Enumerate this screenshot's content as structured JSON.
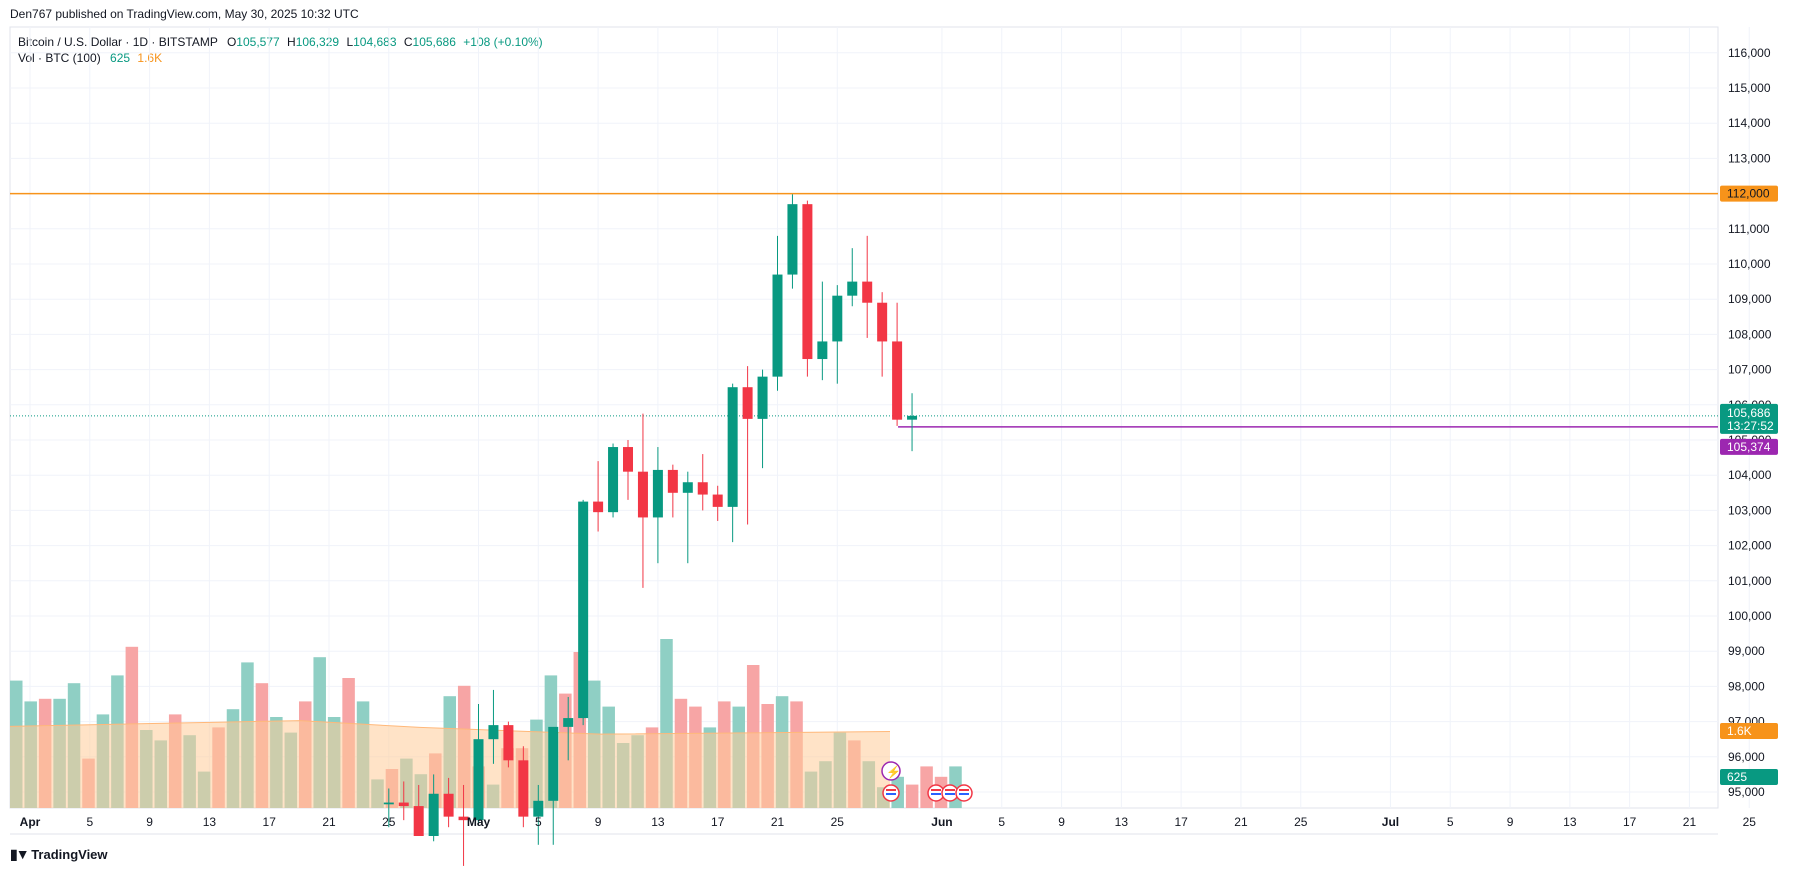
{
  "header": {
    "published": "Den767 published on TradingView.com, May 30, 2025 10:32 UTC"
  },
  "legend": {
    "symbol": "Bitcoin / U.S. Dollar · 1D · BITSTAMP",
    "o_label": "O",
    "o_value": "105,577",
    "h_label": "H",
    "h_value": "106,329",
    "l_label": "L",
    "l_value": "104,683",
    "c_label": "C",
    "c_value": "105,686",
    "change": "+108 (+0.10%)",
    "vol_label": "Vol · BTC (100)",
    "vol_value": "625",
    "vol_ma": "1.6K"
  },
  "footer": {
    "logo_text": "TradingView"
  },
  "colors": {
    "up": "#089981",
    "down": "#f23645",
    "vol_up": "#8fcfc4",
    "vol_down": "#f7a5a5",
    "vol_ma_fill": "#ffcc99",
    "resistance": "#f7931a",
    "support": "#9c27b0"
  },
  "chart_data": {
    "type": "candlestick",
    "symbol": "BTCUSD",
    "timeframe": "1D",
    "ylim": [
      94700,
      116500
    ],
    "y_ticks": [
      95000,
      96000,
      97000,
      98000,
      99000,
      100000,
      101000,
      102000,
      103000,
      104000,
      105000,
      106000,
      107000,
      108000,
      109000,
      110000,
      111000,
      112000,
      113000,
      114000,
      115000,
      116000
    ],
    "y_tick_labels": [
      "95,000",
      "96,000",
      "97,000",
      "98,000",
      "99,000",
      "100,000",
      "101,000",
      "102,000",
      "103,000",
      "104,000",
      "105,000",
      "106,000",
      "107,000",
      "108,000",
      "109,000",
      "110,000",
      "111,000",
      "112,000",
      "113,000",
      "114,000",
      "115,000",
      "116,000"
    ],
    "x_tick_labels": [
      "Apr",
      "5",
      "9",
      "13",
      "17",
      "21",
      "25",
      "May",
      "5",
      "9",
      "13",
      "17",
      "21",
      "25",
      "Jun",
      "5",
      "9",
      "13",
      "17",
      "21",
      "25",
      "Jul",
      "5",
      "9",
      "13",
      "17",
      "21",
      "25"
    ],
    "x_tick_days": [
      0,
      4,
      8,
      12,
      16,
      20,
      24,
      30,
      34,
      38,
      42,
      46,
      50,
      54,
      61,
      65,
      69,
      73,
      77,
      81,
      85,
      91,
      95,
      99,
      103,
      107,
      111,
      115
    ],
    "bold_ticks": [
      "Apr",
      "May",
      "Jun",
      "Jul"
    ],
    "candles": [
      {
        "date": "2025-04-25",
        "o": 94650,
        "h": 95100,
        "l": 94000,
        "c": 94700
      },
      {
        "date": "2025-04-26",
        "o": 94700,
        "h": 95300,
        "l": 94200,
        "c": 94600
      },
      {
        "date": "2025-04-27",
        "o": 94600,
        "h": 95200,
        "l": 93800,
        "c": 93750
      },
      {
        "date": "2025-04-28",
        "o": 93750,
        "h": 95500,
        "l": 93600,
        "c": 94950
      },
      {
        "date": "2025-04-29",
        "o": 94950,
        "h": 95400,
        "l": 94000,
        "c": 94300
      },
      {
        "date": "2025-04-30",
        "o": 94300,
        "h": 95200,
        "l": 92900,
        "c": 94200
      },
      {
        "date": "2025-05-01",
        "o": 94200,
        "h": 97500,
        "l": 94100,
        "c": 96500
      },
      {
        "date": "2025-05-02",
        "o": 96500,
        "h": 97900,
        "l": 95800,
        "c": 96900
      },
      {
        "date": "2025-05-03",
        "o": 96900,
        "h": 97000,
        "l": 95700,
        "c": 95900
      },
      {
        "date": "2025-05-04",
        "o": 95900,
        "h": 96300,
        "l": 94000,
        "c": 94300
      },
      {
        "date": "2025-05-05",
        "o": 94300,
        "h": 95200,
        "l": 93500,
        "c": 94750
      },
      {
        "date": "2025-05-06",
        "o": 94750,
        "h": 96800,
        "l": 93500,
        "c": 96850
      },
      {
        "date": "2025-05-07",
        "o": 96850,
        "h": 97700,
        "l": 95900,
        "c": 97100
      },
      {
        "date": "2025-05-08",
        "o": 97100,
        "h": 103300,
        "l": 96900,
        "c": 103250
      },
      {
        "date": "2025-05-09",
        "o": 103250,
        "h": 104400,
        "l": 102400,
        "c": 102950
      },
      {
        "date": "2025-05-10",
        "o": 102950,
        "h": 104900,
        "l": 102800,
        "c": 104800
      },
      {
        "date": "2025-05-11",
        "o": 104800,
        "h": 105000,
        "l": 103300,
        "c": 104100
      },
      {
        "date": "2025-05-12",
        "o": 104100,
        "h": 105750,
        "l": 100800,
        "c": 102800
      },
      {
        "date": "2025-05-13",
        "o": 102800,
        "h": 104800,
        "l": 101500,
        "c": 104150
      },
      {
        "date": "2025-05-14",
        "o": 104150,
        "h": 104300,
        "l": 102800,
        "c": 103500
      },
      {
        "date": "2025-05-15",
        "o": 103500,
        "h": 104100,
        "l": 101500,
        "c": 103800
      },
      {
        "date": "2025-05-16",
        "o": 103800,
        "h": 104600,
        "l": 103000,
        "c": 103450
      },
      {
        "date": "2025-05-17",
        "o": 103450,
        "h": 103700,
        "l": 102700,
        "c": 103100
      },
      {
        "date": "2025-05-18",
        "o": 103100,
        "h": 106600,
        "l": 102100,
        "c": 106500
      },
      {
        "date": "2025-05-19",
        "o": 106500,
        "h": 107100,
        "l": 102600,
        "c": 105600
      },
      {
        "date": "2025-05-20",
        "o": 105600,
        "h": 107000,
        "l": 104200,
        "c": 106800
      },
      {
        "date": "2025-05-21",
        "o": 106800,
        "h": 110800,
        "l": 106400,
        "c": 109700
      },
      {
        "date": "2025-05-22",
        "o": 109700,
        "h": 111980,
        "l": 109300,
        "c": 111700
      },
      {
        "date": "2025-05-23",
        "o": 111700,
        "h": 111800,
        "l": 106800,
        "c": 107300
      },
      {
        "date": "2025-05-24",
        "o": 107300,
        "h": 109500,
        "l": 106700,
        "c": 107800
      },
      {
        "date": "2025-05-25",
        "o": 107800,
        "h": 109400,
        "l": 106600,
        "c": 109100
      },
      {
        "date": "2025-05-26",
        "o": 109100,
        "h": 110450,
        "l": 108800,
        "c": 109500
      },
      {
        "date": "2025-05-27",
        "o": 109500,
        "h": 110800,
        "l": 107900,
        "c": 108900
      },
      {
        "date": "2025-05-28",
        "o": 108900,
        "h": 109200,
        "l": 106800,
        "c": 107800
      },
      {
        "date": "2025-05-29",
        "o": 107800,
        "h": 108900,
        "l": 105400,
        "c": 105577
      },
      {
        "date": "2025-05-30",
        "o": 105577,
        "h": 106329,
        "l": 104683,
        "c": 105686
      }
    ],
    "volume": {
      "bars": [
        2.45,
        2.05,
        2.1,
        2.1,
        2.4,
        0.95,
        1.8,
        2.55,
        3.1,
        1.5,
        1.3,
        1.8,
        1.4,
        0.7,
        1.55,
        1.9,
        2.8,
        2.4,
        1.75,
        1.45,
        2.05,
        2.9,
        1.75,
        2.5,
        2.05,
        0.55,
        0.75,
        0.95,
        0.65,
        1.05,
        2.15,
        2.35,
        0.8,
        0.45,
        1.15,
        1.15,
        1.7,
        2.55,
        2.2,
        3.0,
        2.45,
        1.95,
        1.25,
        1.4,
        1.55,
        3.25,
        2.1,
        1.95,
        1.55,
        2.05,
        1.95,
        2.75,
        2.0,
        2.15,
        2.05,
        0.7,
        0.9,
        1.45,
        1.3,
        0.9,
        0.4,
        0.6,
        0.45,
        0.8,
        0.6,
        0.8
      ],
      "ma_label": "1.6K",
      "last_label": "625"
    },
    "horizontal_lines": [
      {
        "price": 112000,
        "label": "112,000"
      },
      {
        "price": 105374,
        "label": "105,374"
      }
    ],
    "last_price": {
      "price": 105686,
      "label": "105,686",
      "countdown": "13:27:52"
    }
  }
}
